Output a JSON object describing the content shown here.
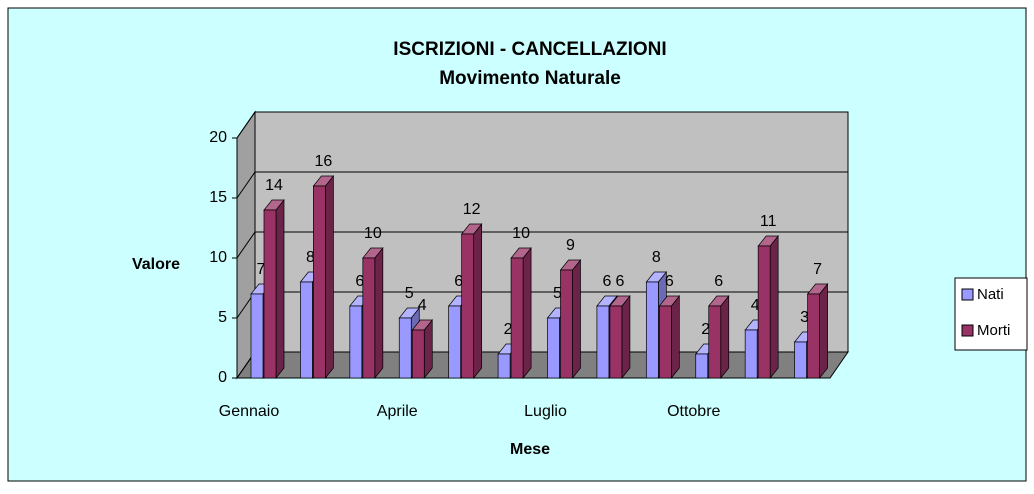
{
  "chart_data": {
    "type": "bar3d",
    "title": "ISCRIZIONI - CANCELLAZIONI",
    "subtitle": "Movimento Naturale",
    "x_label": "Mese",
    "y_label": "Valore",
    "categories": [
      "Gennaio",
      null,
      null,
      "Aprile",
      null,
      null,
      "Luglio",
      null,
      null,
      "Ottobre",
      null,
      null
    ],
    "series": [
      {
        "name": "Nati",
        "color": "#9999ff",
        "values": [
          7,
          8,
          6,
          5,
          6,
          2,
          5,
          6,
          8,
          2,
          4,
          3
        ]
      },
      {
        "name": "Morti",
        "color": "#993366",
        "values": [
          14,
          16,
          10,
          4,
          12,
          10,
          9,
          6,
          6,
          6,
          11,
          7
        ]
      }
    ],
    "ylim": [
      0,
      20
    ],
    "yticks": [
      0,
      5,
      10,
      15,
      20
    ],
    "grid": true,
    "legend": "right"
  }
}
